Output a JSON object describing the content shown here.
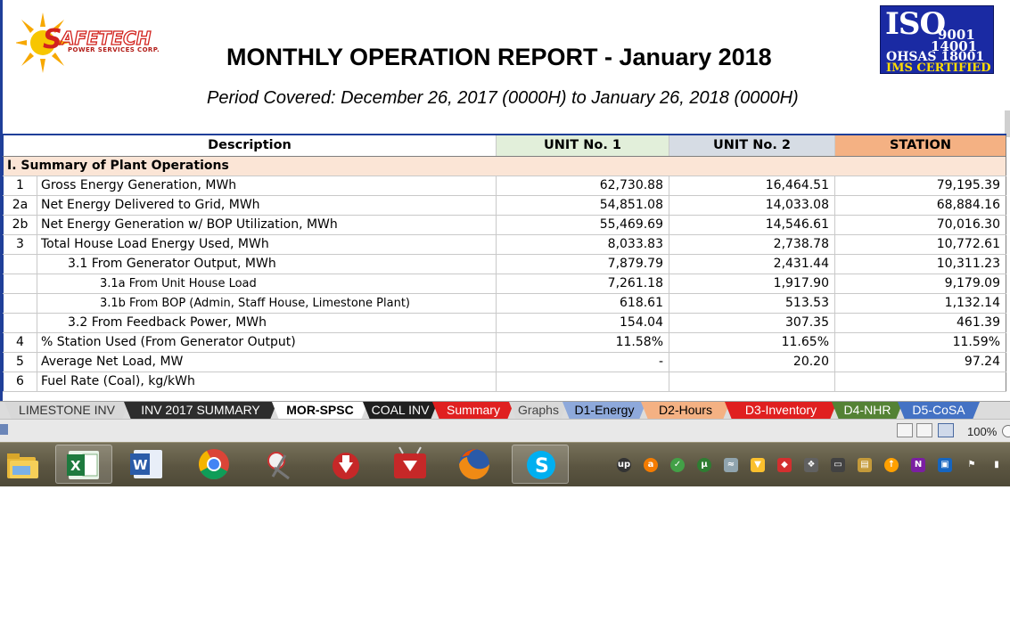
{
  "header": {
    "logo_name": "SAFETECH",
    "logo_sub": "POWER SERVICES CORP.",
    "title": "MONTHLY OPERATION REPORT - January 2018",
    "period": "Period Covered: December 26, 2017 (0000H) to January 26, 2018 (0000H)"
  },
  "iso_badge": {
    "big": "ISO",
    "line1": "9001",
    "line2": "14001",
    "line3": "OHSAS 18001",
    "line4": "IMS CERTIFIED"
  },
  "table": {
    "headers": [
      "Description",
      "UNIT No. 1",
      "UNIT No. 2",
      "STATION"
    ],
    "section": "I. Summary of Plant Operations",
    "rows": [
      {
        "no": "1",
        "label": "Gross Energy Generation, MWh",
        "u1": "62,730.88",
        "u2": "16,464.51",
        "st": "79,195.39"
      },
      {
        "no": "2a",
        "label": "Net Energy Delivered to Grid, MWh",
        "u1": "54,851.08",
        "u2": "14,033.08",
        "st": "68,884.16"
      },
      {
        "no": "2b",
        "label": "Net Energy Generation w/ BOP Utilization, MWh",
        "u1": "55,469.69",
        "u2": "14,546.61",
        "st": "70,016.30"
      },
      {
        "no": "3",
        "label": "Total House Load Energy Used, MWh",
        "u1": "8,033.83",
        "u2": "2,738.78",
        "st": "10,772.61"
      },
      {
        "no": "",
        "label": "3.1  From Generator Output, MWh",
        "u1": "7,879.79",
        "u2": "2,431.44",
        "st": "10,311.23"
      },
      {
        "no": "",
        "label": "3.1a   From Unit House Load",
        "u1": "7,261.18",
        "u2": "1,917.90",
        "st": "9,179.09"
      },
      {
        "no": "",
        "label": "3.1b   From BOP (Admin, Staff House, Limestone Plant)",
        "u1": "618.61",
        "u2": "513.53",
        "st": "1,132.14"
      },
      {
        "no": "",
        "label": "3.2  From Feedback Power, MWh",
        "u1": "154.04",
        "u2": "307.35",
        "st": "461.39"
      },
      {
        "no": "4",
        "label": "% Station Used (From Generator Output)",
        "u1": "11.58%",
        "u2": "11.65%",
        "st": "11.59%"
      },
      {
        "no": "5",
        "label": "Average Net Load, MW",
        "u1": "-",
        "u2": "20.20",
        "st": "97.24"
      },
      {
        "no": "6",
        "label": "Fuel Rate (Coal), kg/kWh",
        "u1": "",
        "u2": "",
        "st": ""
      }
    ]
  },
  "sheet_tabs": [
    {
      "label": "LIMESTONE INV",
      "bg": "#d8d8d8",
      "fg": "#333333",
      "active": false
    },
    {
      "label": "INV 2017 SUMMARY",
      "bg": "#2d2d2d",
      "fg": "#ffffff",
      "active": false
    },
    {
      "label": "MOR-SPSC",
      "bg": "#ffffff",
      "fg": "#000000",
      "active": true
    },
    {
      "label": "COAL INV",
      "bg": "#1f1f1f",
      "fg": "#ffffff",
      "active": false
    },
    {
      "label": "Summary",
      "bg": "#e02020",
      "fg": "#ffffff",
      "active": false
    },
    {
      "label": "Graphs",
      "bg": "#d9d9d9",
      "fg": "#444444",
      "active": false
    },
    {
      "label": "D1-Energy",
      "bg": "#8ea9db",
      "fg": "#000000",
      "active": false
    },
    {
      "label": "D2-Hours",
      "bg": "#f4b183",
      "fg": "#000000",
      "active": false
    },
    {
      "label": "D3-Inventory",
      "bg": "#e02020",
      "fg": "#ffffff",
      "active": false
    },
    {
      "label": "D4-NHR",
      "bg": "#548235",
      "fg": "#ffffff",
      "active": false
    },
    {
      "label": "D5-CoSA",
      "bg": "#4472c4",
      "fg": "#ffffff",
      "active": false
    }
  ],
  "status": {
    "zoom": "100%"
  },
  "taskbar": {
    "apps": [
      "file-explorer-icon",
      "excel-icon",
      "word-icon",
      "chrome-icon",
      "snipping-tool-icon",
      "downloader-icon",
      "video-downloader-icon",
      "firefox-icon",
      "skype-icon"
    ],
    "tray": [
      "upwork-icon",
      "avast-icon",
      "shield-check-icon",
      "utorrent-icon",
      "network-icon",
      "vpn-icon",
      "security-icon",
      "dropbox-icon",
      "monitor-icon",
      "storage-icon",
      "update-icon",
      "onenote-icon",
      "display-icon",
      "flag-icon",
      "power-icon"
    ]
  }
}
